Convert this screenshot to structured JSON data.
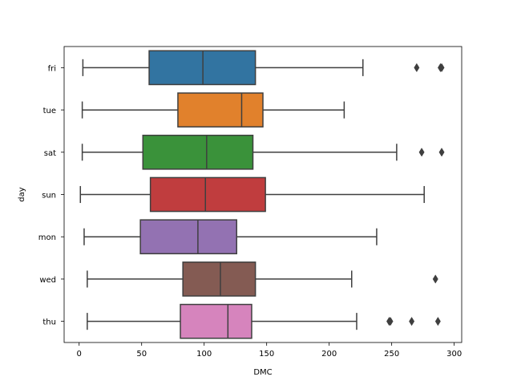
{
  "chart_data": {
    "type": "box",
    "orientation": "horizontal",
    "xlabel": "DMC",
    "ylabel": "day",
    "xlim": [
      -12,
      306
    ],
    "xticks": [
      0,
      50,
      100,
      150,
      200,
      250,
      300
    ],
    "grid": false,
    "categories": [
      "fri",
      "tue",
      "sat",
      "sun",
      "mon",
      "wed",
      "thu"
    ],
    "colors": [
      "#3274a1",
      "#e1812c",
      "#3a923a",
      "#c03d3e",
      "#9372b2",
      "#845b53",
      "#d684bd"
    ],
    "boxes": [
      {
        "category": "fri",
        "whislo": 3,
        "q1": 56,
        "med": 99,
        "q3": 141,
        "whishi": 227,
        "fliers": [
          270,
          289,
          290
        ]
      },
      {
        "category": "tue",
        "whislo": 2.5,
        "q1": 79,
        "med": 130,
        "q3": 147,
        "whishi": 212,
        "fliers": []
      },
      {
        "category": "sat",
        "whislo": 2.5,
        "q1": 51,
        "med": 102,
        "q3": 139,
        "whishi": 254,
        "fliers": [
          274,
          290
        ]
      },
      {
        "category": "sun",
        "whislo": 1,
        "q1": 57,
        "med": 101,
        "q3": 149,
        "whishi": 276,
        "fliers": []
      },
      {
        "category": "mon",
        "whislo": 4,
        "q1": 49,
        "med": 95,
        "q3": 126,
        "whishi": 238,
        "fliers": []
      },
      {
        "category": "wed",
        "whislo": 6.5,
        "q1": 83,
        "med": 113,
        "q3": 141,
        "whishi": 218,
        "fliers": [
          285
        ]
      },
      {
        "category": "thu",
        "whislo": 6.5,
        "q1": 81,
        "med": 119,
        "q3": 138,
        "whishi": 222,
        "fliers": [
          248,
          249,
          266,
          287
        ]
      }
    ]
  }
}
